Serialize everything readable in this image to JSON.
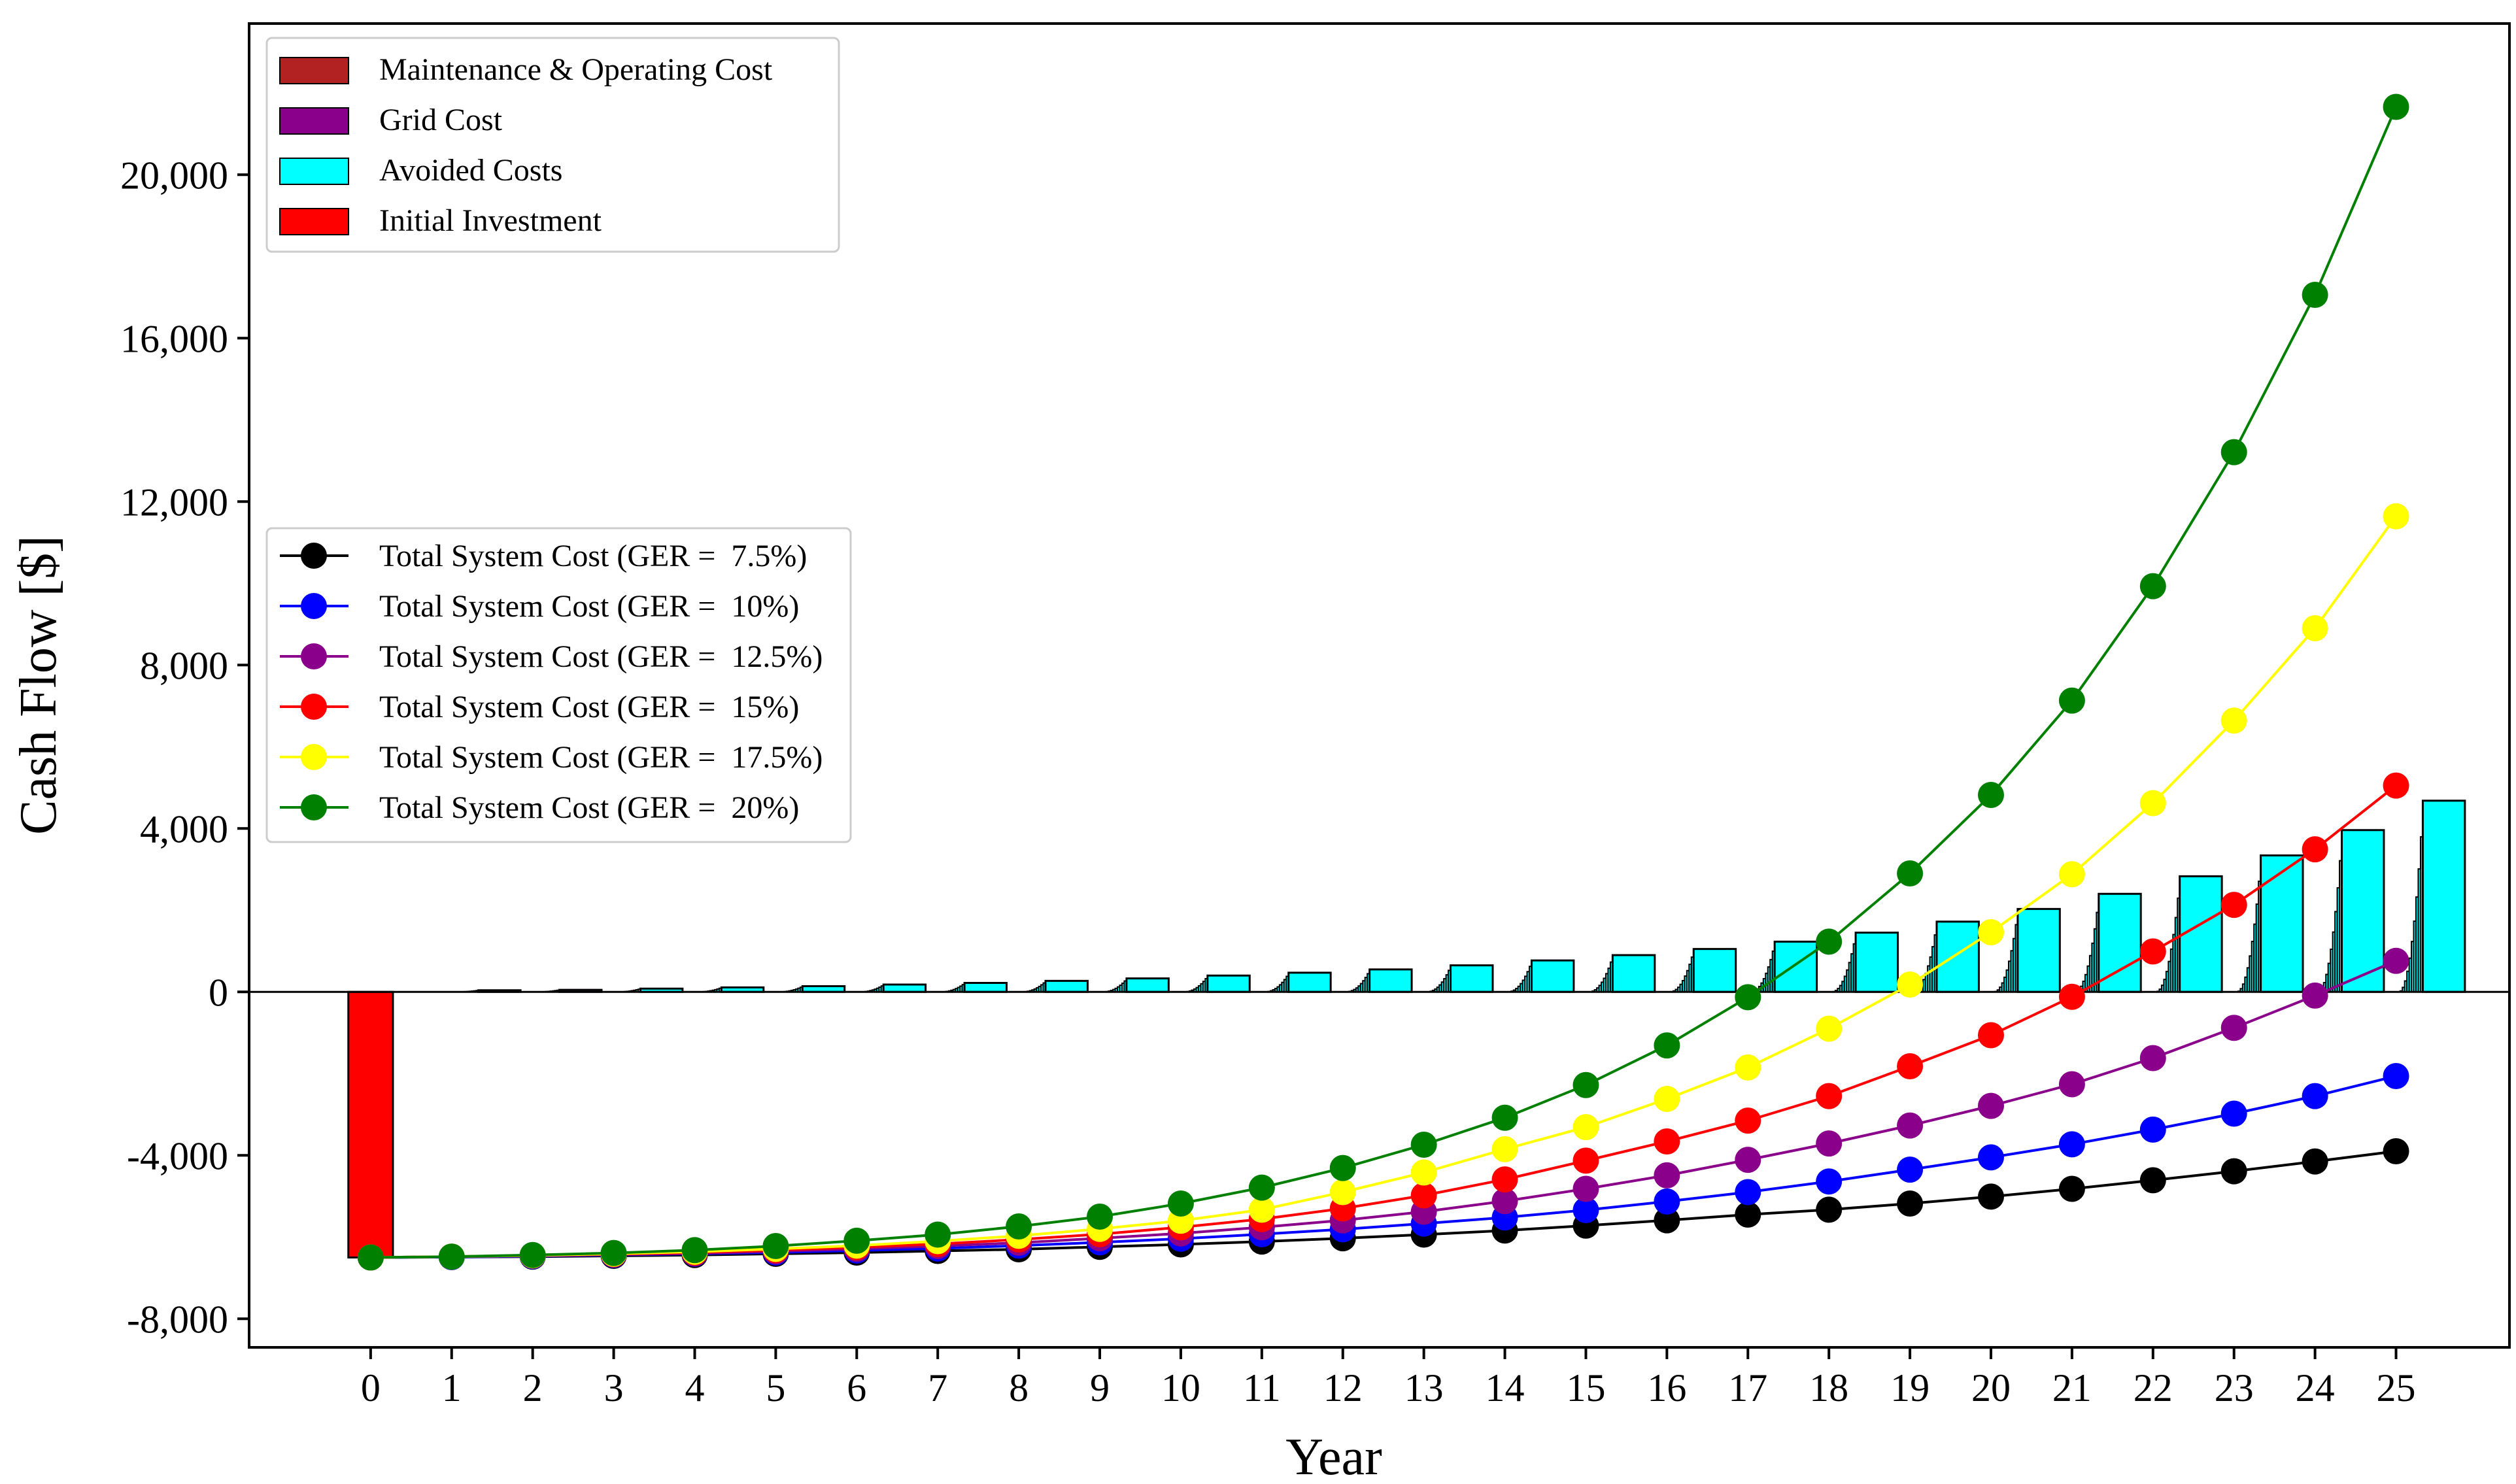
{
  "chart_data": {
    "type": "bar+line",
    "title": "",
    "xlabel": "Year",
    "ylabel": "Cash Flow [$]",
    "x": [
      0,
      1,
      2,
      3,
      4,
      5,
      6,
      7,
      8,
      9,
      10,
      11,
      12,
      13,
      14,
      15,
      16,
      17,
      18,
      19,
      20,
      21,
      22,
      23,
      24,
      25
    ],
    "x_tick_labels": [
      "0",
      "1",
      "2",
      "3",
      "4",
      "5",
      "6",
      "7",
      "8",
      "9",
      "10",
      "11",
      "12",
      "13",
      "14",
      "15",
      "16",
      "17",
      "18",
      "19",
      "20",
      "21",
      "22",
      "23",
      "24",
      "25"
    ],
    "ylim": [
      -8700,
      23700
    ],
    "xlim": [
      -1.5,
      26.4
    ],
    "y_ticks": [
      -8000,
      -4000,
      0,
      4000,
      8000,
      12000,
      16000,
      20000
    ],
    "y_tick_labels": [
      "-8,000",
      "-4,000",
      "0",
      "4,000",
      "8,000",
      "12,000",
      "16,000",
      "20,000"
    ],
    "bar_legend": [
      {
        "label": "Maintenance & Operating Cost",
        "color": "#b22222"
      },
      {
        "label": "Grid Cost",
        "color": "#8b008b"
      },
      {
        "label": "Avoided Costs",
        "color": "#00ffff"
      },
      {
        "label": "Initial Investment",
        "color": "#ff0000"
      }
    ],
    "initial_investment": {
      "year": 0,
      "value": -6500,
      "color": "#ff0000"
    },
    "avoided_costs": {
      "color": "#00ffff",
      "max_values": [
        0,
        40,
        50,
        80,
        110,
        140,
        180,
        220,
        270,
        330,
        400,
        470,
        550,
        650,
        770,
        900,
        1050,
        1230,
        1450,
        1720,
        2030,
        2400,
        2830,
        3340,
        3960,
        4680
      ]
    },
    "line_series": [
      {
        "name": "Total System Cost (GER =  7.5%)",
        "color": "#000000",
        "values": [
          -6500,
          -6490,
          -6480,
          -6460,
          -6440,
          -6410,
          -6380,
          -6340,
          -6300,
          -6240,
          -6180,
          -6110,
          -6030,
          -5940,
          -5840,
          -5720,
          -5590,
          -5450,
          -5330,
          -5180,
          -5010,
          -4820,
          -4610,
          -4390,
          -4150,
          -3900
        ]
      },
      {
        "name": "Total System Cost (GER =  10%)",
        "color": "#0000ff",
        "values": [
          -6500,
          -6490,
          -6470,
          -6440,
          -6410,
          -6380,
          -6330,
          -6280,
          -6210,
          -6130,
          -6040,
          -5930,
          -5810,
          -5670,
          -5520,
          -5340,
          -5130,
          -4900,
          -4640,
          -4350,
          -4050,
          -3730,
          -3370,
          -2980,
          -2550,
          -2060
        ]
      },
      {
        "name": "Total System Cost (GER =  12.5%)",
        "color": "#8b008b",
        "values": [
          -6500,
          -6480,
          -6460,
          -6430,
          -6400,
          -6350,
          -6290,
          -6220,
          -6140,
          -6030,
          -5910,
          -5760,
          -5590,
          -5380,
          -5120,
          -4820,
          -4490,
          -4110,
          -3710,
          -3270,
          -2790,
          -2260,
          -1620,
          -880,
          -90,
          760
        ]
      },
      {
        "name": "Total System Cost (GER =  15%)",
        "color": "#ff0000",
        "values": [
          -6500,
          -6480,
          -6450,
          -6420,
          -6380,
          -6320,
          -6250,
          -6170,
          -6060,
          -5930,
          -5760,
          -5560,
          -5300,
          -4980,
          -4590,
          -4130,
          -3660,
          -3150,
          -2550,
          -1820,
          -1060,
          -120,
          990,
          2130,
          3490,
          5050
        ]
      },
      {
        "name": "Total System Cost (GER =  17.5%)",
        "color": "#ffff00",
        "values": [
          -6500,
          -6480,
          -6450,
          -6410,
          -6360,
          -6290,
          -6210,
          -6100,
          -5970,
          -5800,
          -5600,
          -5330,
          -4900,
          -4420,
          -3850,
          -3310,
          -2620,
          -1850,
          -900,
          180,
          1460,
          2880,
          4620,
          6640,
          8900,
          11640
        ]
      },
      {
        "name": "Total System Cost (GER =  20%)",
        "color": "#008000",
        "values": [
          -6500,
          -6480,
          -6440,
          -6390,
          -6320,
          -6220,
          -6090,
          -5940,
          -5740,
          -5500,
          -5180,
          -4790,
          -4310,
          -3740,
          -3080,
          -2280,
          -1310,
          -130,
          1230,
          2900,
          4820,
          7130,
          9930,
          13210,
          17060,
          21660
        ]
      }
    ]
  }
}
